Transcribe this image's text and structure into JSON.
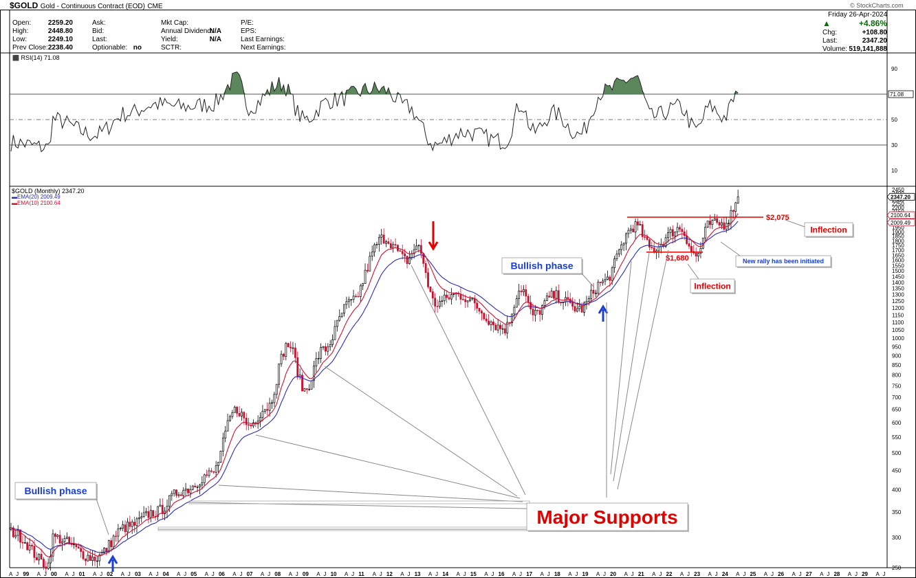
{
  "header": {
    "symbol": "$GOLD",
    "description": "Gold - Continuous Contract (EOD)",
    "exchange": "CME",
    "watermark": "© StockCharts.com",
    "date": "Friday   26-Apr-2024",
    "change_pct": "+4.86%",
    "chg_label": "Chg:",
    "chg_value": "+108.80",
    "last_label": "Last:",
    "last_value": "2347.20",
    "volume_label": "Volume:",
    "volume_value": "519,141,888",
    "col1": [
      {
        "label": "Open:",
        "value": "2259.20"
      },
      {
        "label": "High:",
        "value": "2448.80"
      },
      {
        "label": "Low:",
        "value": "2249.10"
      },
      {
        "label": "Prev Close:",
        "value": "2238.40"
      }
    ],
    "col2": [
      {
        "label": "Ask:",
        "value": ""
      },
      {
        "label": "Bid:",
        "value": ""
      },
      {
        "label": "Last:",
        "value": ""
      },
      {
        "label": "Optionable:",
        "value": "no"
      }
    ],
    "col3": [
      {
        "label": "Mkt Cap:",
        "value": ""
      },
      {
        "label": "Annual Dividend:",
        "value": "N/A"
      },
      {
        "label": "Yield:",
        "value": "N/A"
      },
      {
        "label": "SCTR:",
        "value": ""
      }
    ],
    "col4": [
      {
        "label": "P/E:",
        "value": ""
      },
      {
        "label": "EPS:",
        "value": ""
      },
      {
        "label": "Last Earnings:",
        "value": ""
      },
      {
        "label": "Next Earnings:",
        "value": ""
      }
    ]
  },
  "rsi": {
    "label": "RSI(14) 71.08",
    "current_tag": "71.08",
    "ticks": [
      90,
      70,
      50,
      30,
      10
    ],
    "ylim": [
      0,
      100
    ],
    "overbought": 70,
    "midline": 50,
    "oversold": 30
  },
  "price_panel": {
    "label": "$GOLD (Monthly) 2347.20",
    "ema20_label": "EMA(20) 2009.49",
    "ema10_label": "EMA(10) 2100.64",
    "last_tag": "2347.20",
    "ema10_tag": "2100.64",
    "ema20_tag": "2009.49"
  },
  "annotations": {
    "bullish_phase_1": "Bullish phase",
    "bullish_phase_2": "Bullish phase",
    "major_supports": "Major Supports",
    "level_2075": "$2,075",
    "level_1680": "$1,680",
    "inflection_1": "Inflection",
    "inflection_2": "Inflection",
    "new_rally": "New rally has been initiated"
  },
  "colors": {
    "ema20": "#2b2bb0",
    "ema10": "#d01030",
    "up_candle": "#000000",
    "down_candle": "#c8102e",
    "rsi_fill": "#4a7a4a",
    "annotation_blue": "#1a3fd0",
    "annotation_red": "#e00000"
  },
  "chart_data": {
    "type": "candlestick",
    "title": "$GOLD (Monthly) 2347.20",
    "yscale": "log",
    "ylim": [
      250,
      2450
    ],
    "y_ticks": [
      2450,
      2400,
      2350,
      2300,
      2250,
      2200,
      2150,
      2100,
      2050,
      2000,
      1950,
      1900,
      1850,
      1800,
      1750,
      1700,
      1650,
      1600,
      1550,
      1500,
      1450,
      1400,
      1350,
      1300,
      1250,
      1200,
      1150,
      1100,
      1050,
      1000,
      950,
      900,
      850,
      800,
      750,
      700,
      650,
      600,
      550,
      500,
      450,
      400,
      350,
      300,
      250
    ],
    "x_ticks": [
      "A",
      "J",
      "99",
      "A",
      "J",
      "00",
      "A",
      "J",
      "01",
      "A",
      "J",
      "02",
      "A",
      "J",
      "03",
      "A",
      "J",
      "04",
      "A",
      "J",
      "05",
      "A",
      "J",
      "06",
      "A",
      "J",
      "07",
      "A",
      "J",
      "08",
      "A",
      "J",
      "09",
      "A",
      "J",
      "10",
      "A",
      "J",
      "11",
      "A",
      "J",
      "12",
      "A",
      "J",
      "13",
      "A",
      "J",
      "14",
      "A",
      "J",
      "15",
      "A",
      "J",
      "16",
      "A",
      "J",
      "17",
      "A",
      "J",
      "18",
      "A",
      "J",
      "19",
      "A",
      "J",
      "20",
      "A",
      "J",
      "21",
      "A",
      "J",
      "22",
      "A",
      "J",
      "23",
      "A",
      "J",
      "24",
      "A",
      "J",
      "25",
      "A",
      "J",
      "26",
      "A",
      "J",
      "27",
      "A",
      "J",
      "28",
      "A",
      "J",
      "29",
      "A",
      "J"
    ],
    "x_range": [
      "1998-04",
      "2029-08"
    ],
    "price_anchors": [
      {
        "date": "1998-04",
        "close": 310
      },
      {
        "date": "1999-08",
        "close": 255
      },
      {
        "date": "1999-10",
        "close": 300
      },
      {
        "date": "2001-04",
        "close": 265
      },
      {
        "date": "2002-06",
        "close": 320
      },
      {
        "date": "2003-06",
        "close": 350
      },
      {
        "date": "2004-06",
        "close": 400
      },
      {
        "date": "2005-06",
        "close": 440
      },
      {
        "date": "2006-05",
        "close": 650
      },
      {
        "date": "2006-10",
        "close": 590
      },
      {
        "date": "2007-06",
        "close": 660
      },
      {
        "date": "2008-03",
        "close": 960
      },
      {
        "date": "2008-10",
        "close": 730
      },
      {
        "date": "2009-06",
        "close": 930
      },
      {
        "date": "2010-06",
        "close": 1240
      },
      {
        "date": "2011-08",
        "close": 1830
      },
      {
        "date": "2012-06",
        "close": 1600
      },
      {
        "date": "2012-10",
        "close": 1740
      },
      {
        "date": "2013-06",
        "close": 1230
      },
      {
        "date": "2014-03",
        "close": 1300
      },
      {
        "date": "2015-12",
        "close": 1060
      },
      {
        "date": "2016-07",
        "close": 1350
      },
      {
        "date": "2016-12",
        "close": 1150
      },
      {
        "date": "2017-09",
        "close": 1290
      },
      {
        "date": "2018-08",
        "close": 1190
      },
      {
        "date": "2019-06",
        "close": 1400
      },
      {
        "date": "2020-08",
        "close": 1970
      },
      {
        "date": "2021-03",
        "close": 1710
      },
      {
        "date": "2022-03",
        "close": 1940
      },
      {
        "date": "2022-10",
        "close": 1640
      },
      {
        "date": "2023-04",
        "close": 1990
      },
      {
        "date": "2023-10",
        "close": 1990
      },
      {
        "date": "2023-12",
        "close": 2070
      },
      {
        "date": "2024-04",
        "close": 2347.2
      }
    ],
    "current": {
      "open": 2259.2,
      "high": 2448.8,
      "low": 2249.1,
      "close": 2347.2
    },
    "series": [
      {
        "name": "EMA(20)",
        "last": 2009.49
      },
      {
        "name": "EMA(10)",
        "last": 2100.64
      }
    ],
    "levels": [
      {
        "value": 2075,
        "label": "$2,075"
      },
      {
        "value": 1680,
        "label": "$1,680"
      }
    ],
    "rsi_anchors": [
      {
        "date": "1998-04",
        "v": 32
      },
      {
        "date": "1999-08",
        "v": 28
      },
      {
        "date": "1999-10",
        "v": 50
      },
      {
        "date": "2001-04",
        "v": 38
      },
      {
        "date": "2002-06",
        "v": 55
      },
      {
        "date": "2003-06",
        "v": 62
      },
      {
        "date": "2004-06",
        "v": 60
      },
      {
        "date": "2005-06",
        "v": 62
      },
      {
        "date": "2006-05",
        "v": 82
      },
      {
        "date": "2006-10",
        "v": 60
      },
      {
        "date": "2007-12",
        "v": 78
      },
      {
        "date": "2008-10",
        "v": 50
      },
      {
        "date": "2009-09",
        "v": 65
      },
      {
        "date": "2011-04",
        "v": 74
      },
      {
        "date": "2011-08",
        "v": 73
      },
      {
        "date": "2012-06",
        "v": 60
      },
      {
        "date": "2013-06",
        "v": 30
      },
      {
        "date": "2014-06",
        "v": 40
      },
      {
        "date": "2015-12",
        "v": 33
      },
      {
        "date": "2016-07",
        "v": 62
      },
      {
        "date": "2016-12",
        "v": 40
      },
      {
        "date": "2017-09",
        "v": 55
      },
      {
        "date": "2018-08",
        "v": 38
      },
      {
        "date": "2019-06",
        "v": 72
      },
      {
        "date": "2020-08",
        "v": 83
      },
      {
        "date": "2021-03",
        "v": 52
      },
      {
        "date": "2022-03",
        "v": 60
      },
      {
        "date": "2022-10",
        "v": 42
      },
      {
        "date": "2023-04",
        "v": 60
      },
      {
        "date": "2023-10",
        "v": 52
      },
      {
        "date": "2024-04",
        "v": 71.08
      }
    ]
  }
}
